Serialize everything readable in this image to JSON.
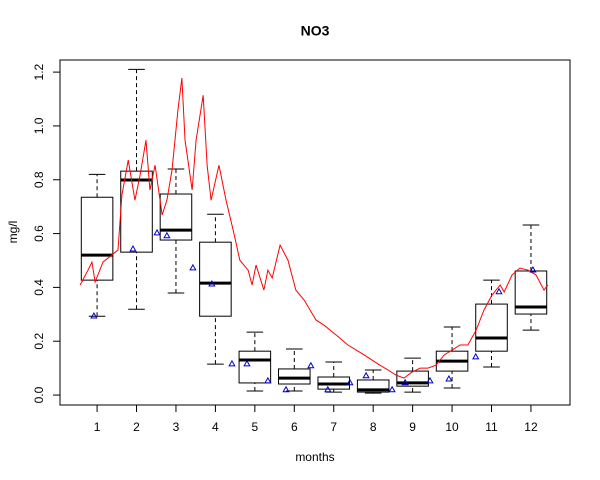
{
  "chart_data": {
    "type": "boxplot",
    "title": "NO3",
    "x_label": "months",
    "y_label": "mg/l",
    "xlim": [
      0.06,
      12.99
    ],
    "ylim": [
      -0.037,
      1.245
    ],
    "xticks": [
      1,
      2,
      3,
      4,
      5,
      6,
      7,
      8,
      9,
      10,
      11,
      12
    ],
    "yticks": [
      {
        "value": 0,
        "label": "0.0"
      },
      0.2,
      0.4,
      0.6,
      0.8,
      {
        "value": 1,
        "label": "1.0"
      },
      1.2
    ],
    "x": [
      1,
      2,
      3,
      4,
      5,
      6,
      7,
      8,
      9,
      10,
      11,
      12
    ],
    "boxes": {
      "whisker_low": [
        0.293,
        0.319,
        0.379,
        0.115,
        0.015,
        0.015,
        0.011,
        0.007,
        0.011,
        0.026,
        0.104,
        0.241
      ],
      "q1": [
        0.427,
        0.531,
        0.576,
        0.293,
        0.045,
        0.041,
        0.022,
        0.011,
        0.033,
        0.089,
        0.163,
        0.301
      ],
      "median": [
        0.52,
        0.799,
        0.613,
        0.416,
        0.13,
        0.063,
        0.041,
        0.019,
        0.045,
        0.126,
        0.212,
        0.327
      ],
      "q3": [
        0.735,
        0.832,
        0.747,
        0.568,
        0.163,
        0.097,
        0.067,
        0.056,
        0.089,
        0.163,
        0.338,
        0.461
      ],
      "whisker_high": [
        0.82,
        1.21,
        0.84,
        0.672,
        0.234,
        0.171,
        0.123,
        0.093,
        0.137,
        0.253,
        0.427,
        0.632
      ]
    },
    "line": {
      "color": "#ff0000",
      "x": [
        0.57,
        0.77,
        0.87,
        0.95,
        1.15,
        1.53,
        1.63,
        1.79,
        1.96,
        2.09,
        2.24,
        2.34,
        2.47,
        2.65,
        2.77,
        2.9,
        3.05,
        3.15,
        3.23,
        3.41,
        3.51,
        3.69,
        3.79,
        3.89,
        4.09,
        4.27,
        4.45,
        4.62,
        4.83,
        4.93,
        5.03,
        5.23,
        5.33,
        5.44,
        5.64,
        5.84,
        6.04,
        6.25,
        6.55,
        6.75,
        7.06,
        7.36,
        7.57,
        7.77,
        7.97,
        8.17,
        8.38,
        8.58,
        8.78,
        8.98,
        9.19,
        9.39,
        9.59,
        9.8,
        10.0,
        10.2,
        10.4,
        10.61,
        10.81,
        11.01,
        11.22,
        11.32,
        11.52,
        11.72,
        11.93,
        12.13,
        12.33,
        12.43
      ],
      "y": [
        0.409,
        0.464,
        0.494,
        0.42,
        0.494,
        0.539,
        0.743,
        0.873,
        0.724,
        0.817,
        0.947,
        0.762,
        0.854,
        0.669,
        0.724,
        0.836,
        1.059,
        1.178,
        0.947,
        0.762,
        0.947,
        1.114,
        0.854,
        0.724,
        0.854,
        0.724,
        0.613,
        0.501,
        0.464,
        0.409,
        0.483,
        0.39,
        0.464,
        0.435,
        0.557,
        0.501,
        0.39,
        0.353,
        0.279,
        0.26,
        0.223,
        0.186,
        0.167,
        0.149,
        0.13,
        0.111,
        0.093,
        0.074,
        0.063,
        0.085,
        0.1,
        0.1,
        0.111,
        0.149,
        0.167,
        0.186,
        0.186,
        0.241,
        0.316,
        0.371,
        0.409,
        0.383,
        0.446,
        0.472,
        0.464,
        0.446,
        0.39,
        0.409
      ]
    },
    "points": {
      "color": "#0000cc",
      "x": [
        0.92,
        1.91,
        2.52,
        2.77,
        3.43,
        3.91,
        4.42,
        4.8,
        5.33,
        5.79,
        6.42,
        6.85,
        7.41,
        7.82,
        8.48,
        8.81,
        9.44,
        9.92,
        10.6,
        11.19,
        12.05
      ],
      "y": [
        0.293,
        0.542,
        0.602,
        0.591,
        0.472,
        0.412,
        0.115,
        0.115,
        0.052,
        0.019,
        0.108,
        0.019,
        0.045,
        0.071,
        0.019,
        0.045,
        0.052,
        0.059,
        0.141,
        0.383,
        0.464
      ]
    }
  }
}
